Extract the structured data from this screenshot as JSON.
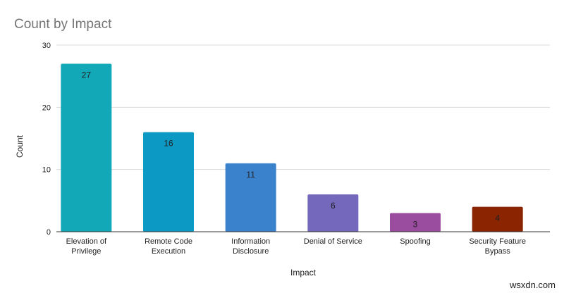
{
  "chart_data": {
    "type": "bar",
    "title": "Count by Impact",
    "xlabel": "Impact",
    "ylabel": "Count",
    "ylim": [
      0,
      30
    ],
    "yticks": [
      0,
      10,
      20,
      30
    ],
    "grid": true,
    "legend": "none",
    "categories": [
      [
        "Elevation of",
        "Privilege"
      ],
      [
        "Remote Code",
        "Execution"
      ],
      [
        "Information",
        "Disclosure"
      ],
      [
        "Denial of Service"
      ],
      [
        "Spoofing"
      ],
      [
        "Security Feature",
        "Bypass"
      ]
    ],
    "values": [
      27,
      16,
      11,
      6,
      3,
      4
    ],
    "colors": [
      "#12a8b8",
      "#0c9ac4",
      "#3a82cc",
      "#7468bd",
      "#9a4c9e",
      "#8b2400"
    ]
  },
  "watermark": "wsxdn.com"
}
